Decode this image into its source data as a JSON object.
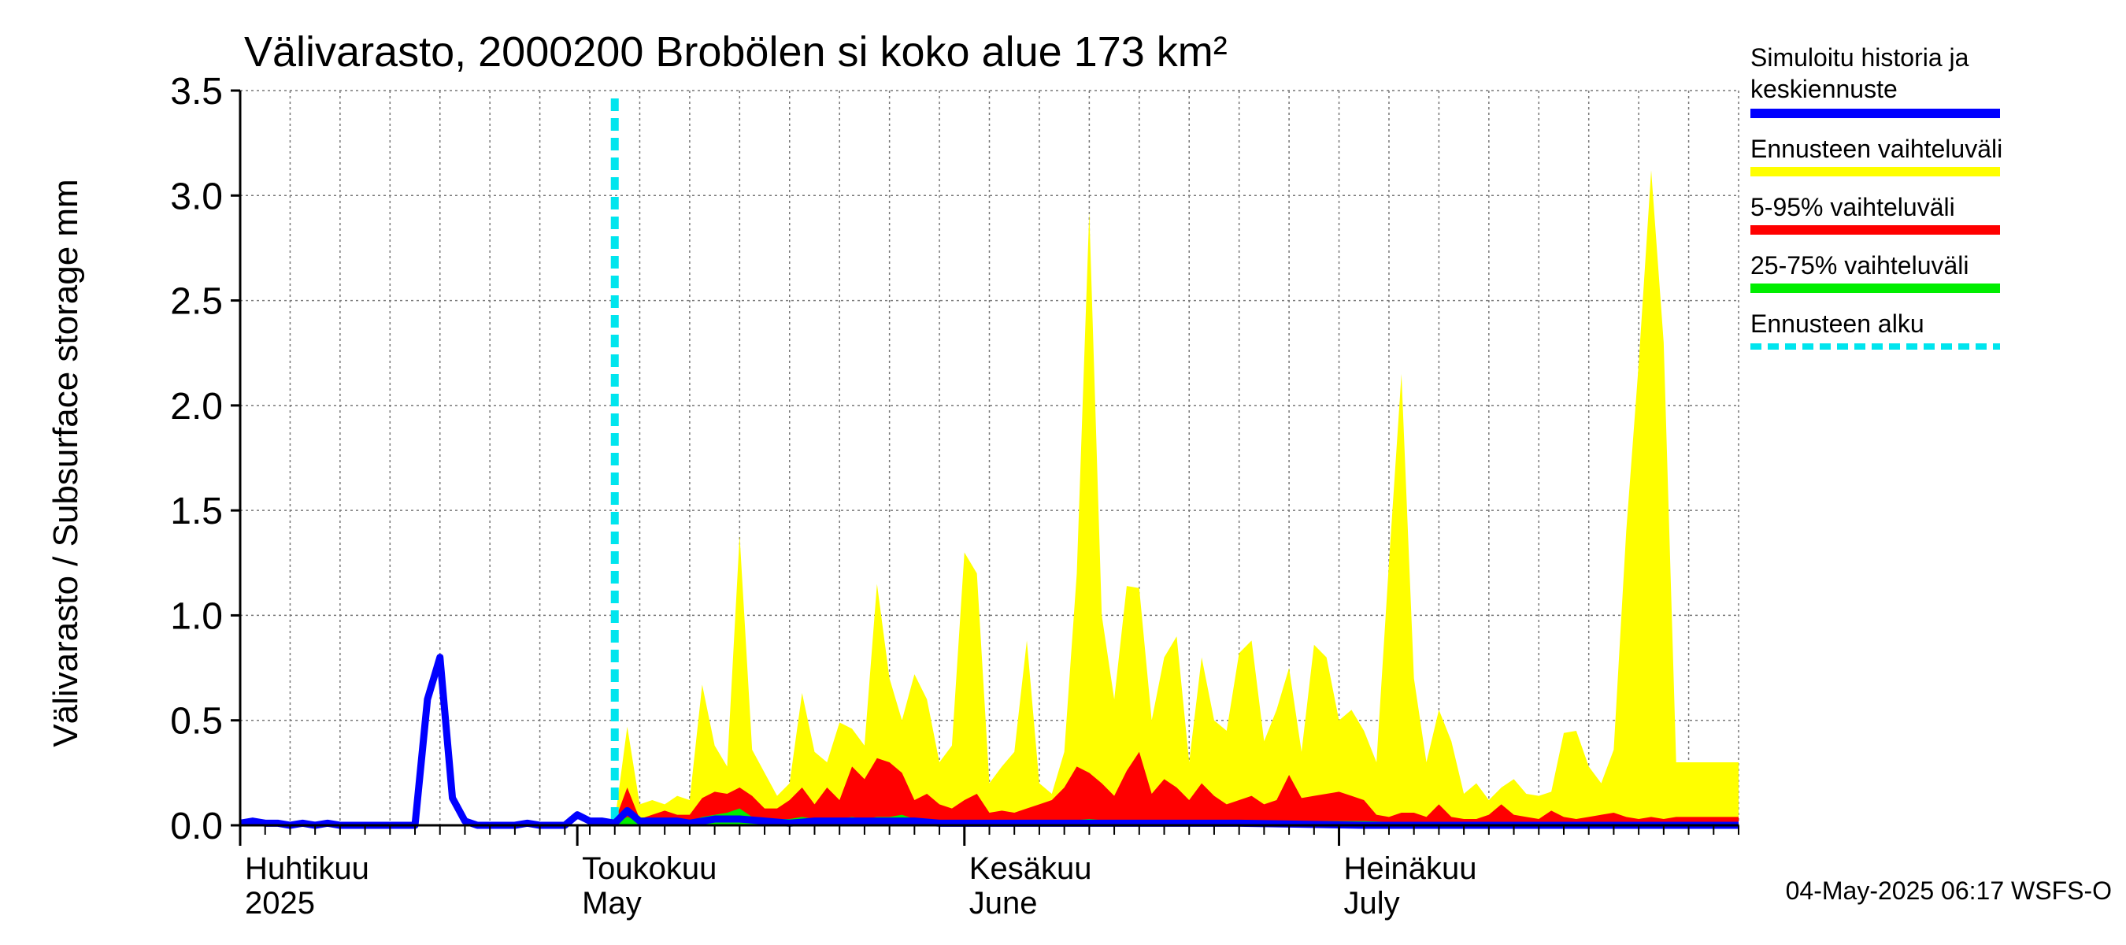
{
  "chart_data": {
    "type": "area",
    "title": "Välivarasto, 2000200 Brobölen si koko alue 173 km²",
    "ylabel": "Välivarasto / Subsurface storage  mm",
    "xlabel": "",
    "ylim": [
      0,
      3.5
    ],
    "y_ticks": [
      "0.0",
      "0.5",
      "1.0",
      "1.5",
      "2.0",
      "2.5",
      "3.0",
      "3.5"
    ],
    "x_range_days": [
      0,
      120
    ],
    "month_labels": [
      {
        "fi": "Huhtikuu",
        "en": "2025",
        "day": 0
      },
      {
        "fi": "Toukokuu",
        "en": "May",
        "day": 27
      },
      {
        "fi": "Kesäkuu",
        "en": "June",
        "day": 58
      },
      {
        "fi": "Heinäkuu",
        "en": "July",
        "day": 88
      }
    ],
    "forecast_start_day": 30,
    "grid": true,
    "legend_position": "right",
    "legend": [
      {
        "label_line1": "Simuloitu historia ja",
        "label_line2": "keskiennuste",
        "color": "#0000ff",
        "style": "solid"
      },
      {
        "label_line1": "Ennusteen vaihteluväli",
        "label_line2": "",
        "color": "#ffff00",
        "style": "solid"
      },
      {
        "label_line1": "5-95% vaihteluväli",
        "label_line2": "",
        "color": "#ff0000",
        "style": "solid"
      },
      {
        "label_line1": "25-75% vaihteluväli",
        "label_line2": "",
        "color": "#00ee00",
        "style": "solid"
      },
      {
        "label_line1": "Ennusteen alku",
        "label_line2": "",
        "color": "#00e5ee",
        "style": "dashed"
      }
    ],
    "footer": "04-May-2025 06:17 WSFS-O",
    "series": [
      {
        "name": "Simuloitu historia ja keskiennuste",
        "color": "#0000ff",
        "points": [
          [
            0,
            0.01
          ],
          [
            1,
            0.02
          ],
          [
            2,
            0.01
          ],
          [
            3,
            0.01
          ],
          [
            4,
            0.0
          ],
          [
            5,
            0.01
          ],
          [
            6,
            0.0
          ],
          [
            7,
            0.01
          ],
          [
            8,
            0.0
          ],
          [
            9,
            0.0
          ],
          [
            10,
            0.0
          ],
          [
            11,
            0.0
          ],
          [
            12,
            0.0
          ],
          [
            13,
            0.0
          ],
          [
            14,
            0.0
          ],
          [
            15,
            0.6
          ],
          [
            16,
            0.8
          ],
          [
            17,
            0.13
          ],
          [
            18,
            0.02
          ],
          [
            19,
            0.0
          ],
          [
            20,
            0.0
          ],
          [
            21,
            0.0
          ],
          [
            22,
            0.0
          ],
          [
            23,
            0.01
          ],
          [
            24,
            0.0
          ],
          [
            25,
            0.0
          ],
          [
            26,
            0.0
          ],
          [
            27,
            0.05
          ],
          [
            28,
            0.02
          ],
          [
            29,
            0.02
          ],
          [
            30,
            0.01
          ],
          [
            31,
            0.07
          ],
          [
            32,
            0.02
          ],
          [
            33,
            0.02
          ],
          [
            34,
            0.02
          ],
          [
            35,
            0.02
          ],
          [
            36,
            0.01
          ],
          [
            38,
            0.03
          ],
          [
            40,
            0.03
          ],
          [
            42,
            0.02
          ],
          [
            44,
            0.01
          ],
          [
            46,
            0.02
          ],
          [
            48,
            0.02
          ],
          [
            50,
            0.02
          ],
          [
            52,
            0.02
          ],
          [
            54,
            0.02
          ],
          [
            56,
            0.01
          ],
          [
            60,
            0.01
          ],
          [
            65,
            0.01
          ],
          [
            70,
            0.01
          ],
          [
            75,
            0.01
          ],
          [
            80,
            0.01
          ],
          [
            90,
            0.0
          ],
          [
            100,
            0.0
          ],
          [
            110,
            0.0
          ],
          [
            120,
            0.0
          ]
        ]
      },
      {
        "name": "Ennusteen vaihteluväli",
        "color": "#ffff00",
        "upper": [
          [
            30,
            0.02
          ],
          [
            31,
            0.47
          ],
          [
            32,
            0.1
          ],
          [
            33,
            0.12
          ],
          [
            34,
            0.1
          ],
          [
            35,
            0.14
          ],
          [
            36,
            0.12
          ],
          [
            37,
            0.67
          ],
          [
            38,
            0.38
          ],
          [
            39,
            0.28
          ],
          [
            40,
            1.38
          ],
          [
            41,
            0.36
          ],
          [
            42,
            0.25
          ],
          [
            43,
            0.14
          ],
          [
            44,
            0.2
          ],
          [
            45,
            0.63
          ],
          [
            46,
            0.35
          ],
          [
            47,
            0.3
          ],
          [
            48,
            0.49
          ],
          [
            49,
            0.46
          ],
          [
            50,
            0.38
          ],
          [
            51,
            1.15
          ],
          [
            52,
            0.7
          ],
          [
            53,
            0.5
          ],
          [
            54,
            0.72
          ],
          [
            55,
            0.6
          ],
          [
            56,
            0.3
          ],
          [
            57,
            0.38
          ],
          [
            58,
            1.3
          ],
          [
            59,
            1.2
          ],
          [
            60,
            0.2
          ],
          [
            61,
            0.28
          ],
          [
            62,
            0.35
          ],
          [
            63,
            0.88
          ],
          [
            64,
            0.2
          ],
          [
            65,
            0.15
          ],
          [
            66,
            0.35
          ],
          [
            67,
            1.2
          ],
          [
            68,
            2.92
          ],
          [
            69,
            1.0
          ],
          [
            70,
            0.6
          ],
          [
            71,
            1.14
          ],
          [
            72,
            1.13
          ],
          [
            73,
            0.5
          ],
          [
            74,
            0.8
          ],
          [
            75,
            0.9
          ],
          [
            76,
            0.3
          ],
          [
            77,
            0.8
          ],
          [
            78,
            0.5
          ],
          [
            79,
            0.45
          ],
          [
            80,
            0.82
          ],
          [
            81,
            0.88
          ],
          [
            82,
            0.4
          ],
          [
            83,
            0.55
          ],
          [
            84,
            0.75
          ],
          [
            85,
            0.35
          ],
          [
            86,
            0.86
          ],
          [
            87,
            0.8
          ],
          [
            88,
            0.5
          ],
          [
            89,
            0.55
          ],
          [
            90,
            0.45
          ],
          [
            91,
            0.3
          ],
          [
            92,
            1.25
          ],
          [
            93,
            2.15
          ],
          [
            94,
            0.7
          ],
          [
            95,
            0.3
          ],
          [
            96,
            0.55
          ],
          [
            97,
            0.4
          ],
          [
            98,
            0.15
          ],
          [
            99,
            0.2
          ],
          [
            100,
            0.12
          ],
          [
            101,
            0.18
          ],
          [
            102,
            0.22
          ],
          [
            103,
            0.15
          ],
          [
            104,
            0.14
          ],
          [
            105,
            0.16
          ],
          [
            106,
            0.44
          ],
          [
            107,
            0.45
          ],
          [
            108,
            0.28
          ],
          [
            109,
            0.2
          ],
          [
            110,
            0.36
          ],
          [
            111,
            1.4
          ],
          [
            112,
            2.2
          ],
          [
            113,
            3.12
          ],
          [
            114,
            2.3
          ],
          [
            115,
            0.3
          ],
          [
            120,
            0.3
          ]
        ],
        "lower": [
          [
            30,
            0.0
          ],
          [
            120,
            0.0
          ]
        ]
      },
      {
        "name": "5-95% vaihteluväli",
        "color": "#ff0000",
        "upper": [
          [
            30,
            0.02
          ],
          [
            31,
            0.18
          ],
          [
            32,
            0.03
          ],
          [
            33,
            0.05
          ],
          [
            34,
            0.07
          ],
          [
            35,
            0.05
          ],
          [
            36,
            0.05
          ],
          [
            37,
            0.13
          ],
          [
            38,
            0.16
          ],
          [
            39,
            0.15
          ],
          [
            40,
            0.18
          ],
          [
            41,
            0.14
          ],
          [
            42,
            0.08
          ],
          [
            43,
            0.08
          ],
          [
            44,
            0.12
          ],
          [
            45,
            0.18
          ],
          [
            46,
            0.1
          ],
          [
            47,
            0.18
          ],
          [
            48,
            0.12
          ],
          [
            49,
            0.28
          ],
          [
            50,
            0.22
          ],
          [
            51,
            0.32
          ],
          [
            52,
            0.3
          ],
          [
            53,
            0.25
          ],
          [
            54,
            0.12
          ],
          [
            55,
            0.15
          ],
          [
            56,
            0.1
          ],
          [
            57,
            0.08
          ],
          [
            58,
            0.12
          ],
          [
            59,
            0.15
          ],
          [
            60,
            0.06
          ],
          [
            61,
            0.07
          ],
          [
            62,
            0.06
          ],
          [
            63,
            0.08
          ],
          [
            64,
            0.1
          ],
          [
            65,
            0.12
          ],
          [
            66,
            0.18
          ],
          [
            67,
            0.28
          ],
          [
            68,
            0.25
          ],
          [
            69,
            0.2
          ],
          [
            70,
            0.14
          ],
          [
            71,
            0.26
          ],
          [
            72,
            0.35
          ],
          [
            73,
            0.15
          ],
          [
            74,
            0.22
          ],
          [
            75,
            0.18
          ],
          [
            76,
            0.12
          ],
          [
            77,
            0.2
          ],
          [
            78,
            0.14
          ],
          [
            79,
            0.1
          ],
          [
            80,
            0.12
          ],
          [
            81,
            0.14
          ],
          [
            82,
            0.1
          ],
          [
            83,
            0.12
          ],
          [
            84,
            0.24
          ],
          [
            85,
            0.13
          ],
          [
            86,
            0.14
          ],
          [
            87,
            0.15
          ],
          [
            88,
            0.16
          ],
          [
            89,
            0.14
          ],
          [
            90,
            0.12
          ],
          [
            91,
            0.05
          ],
          [
            92,
            0.04
          ],
          [
            93,
            0.06
          ],
          [
            94,
            0.06
          ],
          [
            95,
            0.04
          ],
          [
            96,
            0.1
          ],
          [
            97,
            0.04
          ],
          [
            98,
            0.03
          ],
          [
            99,
            0.03
          ],
          [
            100,
            0.05
          ],
          [
            101,
            0.1
          ],
          [
            102,
            0.05
          ],
          [
            103,
            0.04
          ],
          [
            104,
            0.03
          ],
          [
            105,
            0.07
          ],
          [
            106,
            0.04
          ],
          [
            107,
            0.03
          ],
          [
            108,
            0.04
          ],
          [
            109,
            0.05
          ],
          [
            110,
            0.06
          ],
          [
            111,
            0.04
          ],
          [
            112,
            0.03
          ],
          [
            113,
            0.04
          ],
          [
            114,
            0.03
          ],
          [
            115,
            0.04
          ],
          [
            120,
            0.04
          ]
        ],
        "lower": [
          [
            30,
            0.0
          ],
          [
            120,
            0.0
          ]
        ]
      },
      {
        "name": "25-75% vaihteluväli",
        "color": "#00ee00",
        "upper": [
          [
            30,
            0.01
          ],
          [
            31,
            0.04
          ],
          [
            32,
            0.02
          ],
          [
            33,
            0.02
          ],
          [
            34,
            0.02
          ],
          [
            35,
            0.02
          ],
          [
            36,
            0.02
          ],
          [
            37,
            0.04
          ],
          [
            38,
            0.05
          ],
          [
            39,
            0.06
          ],
          [
            40,
            0.08
          ],
          [
            41,
            0.04
          ],
          [
            42,
            0.03
          ],
          [
            43,
            0.03
          ],
          [
            44,
            0.03
          ],
          [
            45,
            0.04
          ],
          [
            46,
            0.03
          ],
          [
            47,
            0.03
          ],
          [
            48,
            0.03
          ],
          [
            49,
            0.04
          ],
          [
            50,
            0.03
          ],
          [
            51,
            0.04
          ],
          [
            52,
            0.04
          ],
          [
            53,
            0.05
          ],
          [
            54,
            0.03
          ],
          [
            55,
            0.03
          ],
          [
            56,
            0.02
          ],
          [
            58,
            0.02
          ],
          [
            60,
            0.02
          ],
          [
            64,
            0.02
          ],
          [
            66,
            0.02
          ],
          [
            68,
            0.03
          ],
          [
            70,
            0.02
          ],
          [
            72,
            0.02
          ],
          [
            75,
            0.02
          ],
          [
            80,
            0.02
          ],
          [
            85,
            0.02
          ],
          [
            90,
            0.02
          ],
          [
            95,
            0.01
          ],
          [
            100,
            0.01
          ],
          [
            110,
            0.01
          ],
          [
            120,
            0.01
          ]
        ],
        "lower": [
          [
            30,
            0.0
          ],
          [
            120,
            0.0
          ]
        ]
      }
    ]
  }
}
